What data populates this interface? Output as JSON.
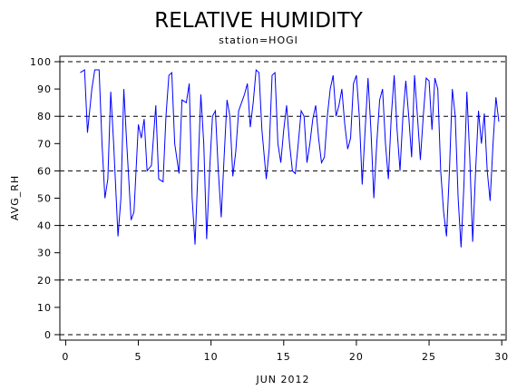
{
  "chart_data": {
    "type": "line",
    "title": "RELATIVE HUMIDITY",
    "subtitle": "station=HOGI",
    "y_label": "AVG_RH",
    "x_label": "JUN 2012",
    "color": "#0000ff",
    "xlim": [
      -0.4,
      30.3
    ],
    "xticks": [
      0,
      5,
      10,
      15,
      20,
      25,
      30
    ],
    "ylim": [
      -2,
      102
    ],
    "yticks": [
      0,
      10,
      20,
      30,
      40,
      50,
      60,
      70,
      80,
      90,
      100
    ],
    "grid_values": [
      0,
      20,
      40,
      60,
      80,
      100
    ],
    "grid_style": "dashed",
    "x": [
      1.0,
      1.3,
      1.5,
      1.8,
      2.0,
      2.3,
      2.5,
      2.7,
      2.9,
      3.1,
      3.3,
      3.6,
      3.8,
      4.0,
      4.2,
      4.5,
      4.7,
      5.0,
      5.2,
      5.4,
      5.6,
      5.9,
      6.2,
      6.4,
      6.7,
      6.9,
      7.1,
      7.3,
      7.5,
      7.8,
      8.0,
      8.3,
      8.5,
      8.7,
      8.9,
      9.1,
      9.3,
      9.5,
      9.7,
      9.9,
      10.1,
      10.3,
      10.5,
      10.7,
      10.9,
      11.1,
      11.3,
      11.5,
      11.7,
      11.9,
      12.1,
      12.3,
      12.5,
      12.7,
      12.9,
      13.1,
      13.3,
      13.5,
      13.8,
      14.0,
      14.2,
      14.4,
      14.6,
      14.8,
      15.0,
      15.2,
      15.4,
      15.6,
      15.8,
      16.0,
      16.2,
      16.4,
      16.6,
      16.8,
      17.0,
      17.2,
      17.4,
      17.6,
      17.8,
      18.0,
      18.2,
      18.4,
      18.6,
      18.8,
      19.0,
      19.2,
      19.4,
      19.6,
      19.8,
      20.0,
      20.2,
      20.4,
      20.6,
      20.8,
      21.0,
      21.2,
      21.4,
      21.6,
      21.8,
      22.0,
      22.2,
      22.4,
      22.6,
      22.8,
      23.0,
      23.2,
      23.4,
      23.6,
      23.8,
      24.0,
      24.2,
      24.4,
      24.6,
      24.8,
      25.0,
      25.2,
      25.4,
      25.6,
      25.8,
      26.0,
      26.2,
      26.4,
      26.6,
      26.8,
      27.0,
      27.2,
      27.4,
      27.6,
      27.8,
      28.0,
      28.2,
      28.4,
      28.6,
      28.8,
      29.0,
      29.2,
      29.4,
      29.6,
      29.8
    ],
    "values": [
      96,
      97,
      74,
      90,
      97,
      97,
      70,
      50,
      57,
      89,
      70,
      36,
      50,
      90,
      70,
      42,
      45,
      77,
      72,
      79,
      60,
      62,
      84,
      57,
      56,
      80,
      95,
      96,
      70,
      59,
      86,
      85,
      92,
      50,
      33,
      60,
      88,
      70,
      35,
      60,
      80,
      82,
      60,
      43,
      65,
      86,
      80,
      58,
      67,
      82,
      85,
      88,
      92,
      76,
      85,
      97,
      96,
      75,
      57,
      68,
      95,
      96,
      70,
      63,
      75,
      84,
      70,
      60,
      59,
      70,
      82,
      80,
      63,
      70,
      79,
      84,
      72,
      63,
      65,
      80,
      90,
      95,
      80,
      84,
      90,
      77,
      68,
      72,
      92,
      95,
      80,
      55,
      75,
      94,
      75,
      50,
      70,
      86,
      90,
      70,
      57,
      80,
      95,
      75,
      60,
      80,
      93,
      80,
      65,
      95,
      80,
      64,
      80,
      94,
      93,
      75,
      94,
      90,
      60,
      45,
      36,
      60,
      90,
      80,
      50,
      32,
      55,
      89,
      65,
      34,
      60,
      82,
      70,
      81,
      60,
      49,
      70,
      87,
      78
    ]
  }
}
